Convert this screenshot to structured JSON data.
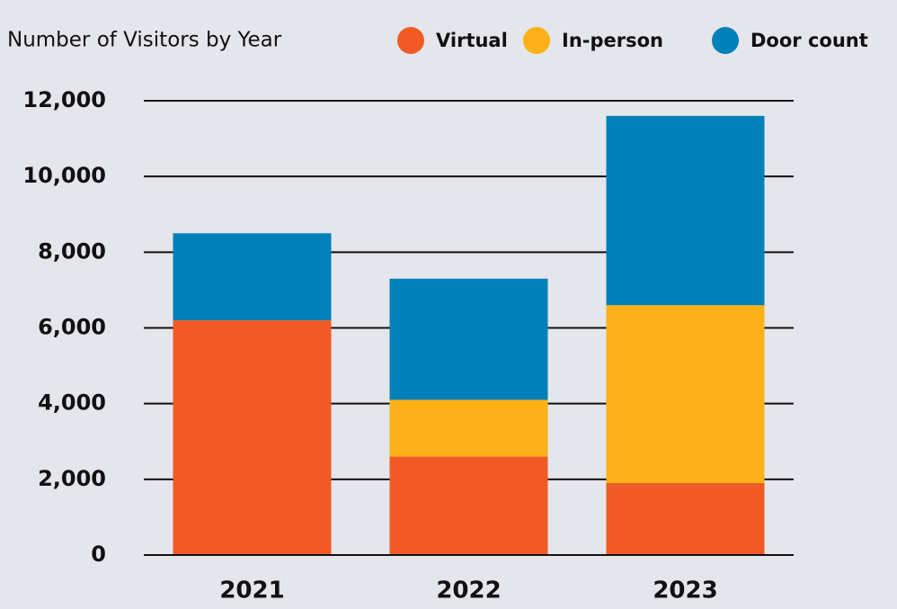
{
  "chart_data": {
    "type": "stacked_bar",
    "title": "Number of Visitors by Year",
    "categories": [
      "2021",
      "2022",
      "2023"
    ],
    "series": [
      {
        "name": "Virtual",
        "color": "#f15a24",
        "values": [
          6200,
          2600,
          1900
        ]
      },
      {
        "name": "In-person",
        "color": "#fbb117",
        "values": [
          0,
          1500,
          4700
        ]
      },
      {
        "name": "Door count",
        "color": "#0080b8",
        "values": [
          2300,
          3200,
          5000
        ]
      }
    ],
    "ylim": [
      0,
      12000
    ],
    "yticks": [
      0,
      {
        "value": 2000,
        "label": "2,000"
      },
      {
        "value": 4000,
        "label": "4,000"
      },
      {
        "value": 6000,
        "label": "6,000"
      },
      {
        "value": 8000,
        "label": "8,000"
      },
      {
        "value": 10000,
        "label": "10,000"
      },
      {
        "value": 12000,
        "label": "12,000"
      }
    ],
    "grid": true
  }
}
